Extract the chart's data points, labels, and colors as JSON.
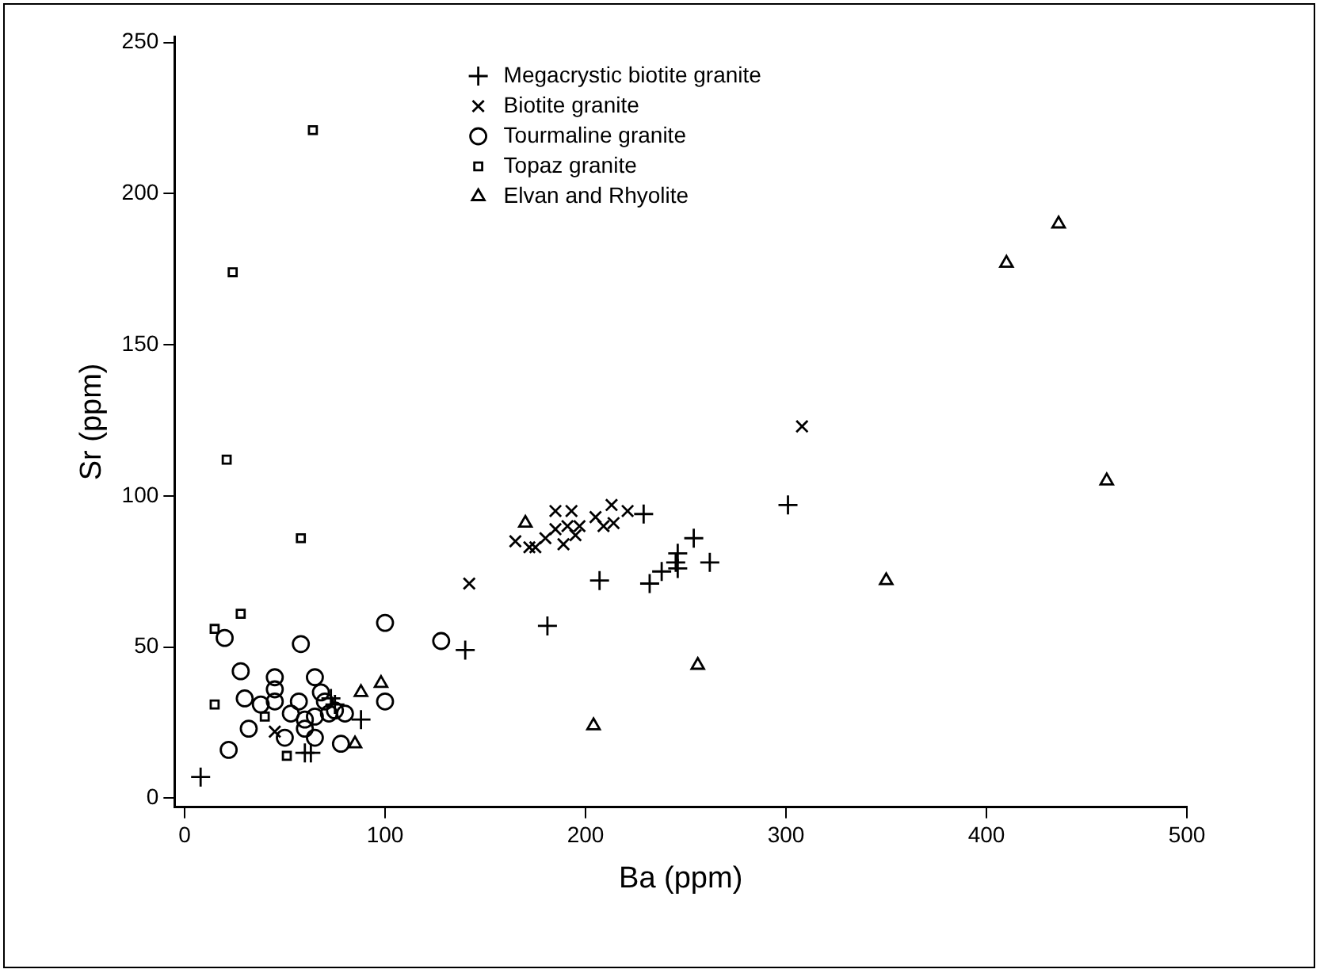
{
  "chart_data": {
    "type": "scatter",
    "xlabel": "Ba (ppm)",
    "ylabel": "Sr (ppm)",
    "xlim": [
      -5,
      500
    ],
    "xticks": [
      0,
      100,
      200,
      300,
      400,
      500
    ],
    "ylim": [
      -3,
      252
    ],
    "yticks": [
      0,
      50,
      100,
      150,
      200,
      250
    ],
    "grid": false,
    "legend": "top",
    "series": [
      {
        "name": "Megacrystic biotite granite",
        "color": "#000000",
        "marker": "cross",
        "x": [
          8,
          60,
          63,
          73,
          75,
          88,
          140,
          181,
          207,
          232,
          238,
          245,
          246,
          246,
          254,
          262,
          229,
          301
        ],
        "values": [
          7,
          15,
          15,
          33,
          31,
          26,
          49,
          57,
          72,
          71,
          75,
          78,
          76,
          81,
          86,
          78,
          94,
          97
        ]
      },
      {
        "name": "Biotite granite",
        "color": "#000000",
        "marker": "x",
        "x": [
          45,
          142,
          165,
          172,
          175,
          180,
          185,
          189,
          185,
          193,
          191,
          197,
          195,
          205,
          213,
          209,
          214,
          221,
          308
        ],
        "values": [
          22,
          71,
          85,
          83,
          83,
          86,
          89,
          84,
          95,
          95,
          90,
          90,
          87,
          93,
          97,
          90,
          91,
          95,
          123
        ]
      },
      {
        "name": "Tourmaline granite",
        "color": "#000000",
        "marker": "circle",
        "x": [
          20,
          22,
          28,
          30,
          32,
          38,
          45,
          45,
          45,
          50,
          53,
          57,
          58,
          60,
          60,
          65,
          65,
          65,
          68,
          70,
          72,
          75,
          78,
          80,
          100,
          100,
          128
        ],
        "values": [
          53,
          16,
          42,
          33,
          23,
          31,
          40,
          36,
          32,
          20,
          28,
          32,
          51,
          26,
          23,
          40,
          27,
          20,
          35,
          32,
          28,
          29,
          18,
          28,
          58,
          32,
          52
        ]
      },
      {
        "name": "Topaz granite",
        "color": "#000000",
        "marker": "square",
        "x": [
          15,
          15,
          21,
          24,
          28,
          40,
          51,
          58,
          64
        ],
        "values": [
          56,
          31,
          112,
          174,
          61,
          27,
          14,
          86,
          221
        ]
      },
      {
        "name": "Elvan and Rhyolite",
        "color": "#000000",
        "marker": "triangle",
        "x": [
          85,
          88,
          98,
          170,
          204,
          256,
          350,
          410,
          436,
          460
        ],
        "values": [
          18,
          35,
          38,
          91,
          24,
          44,
          72,
          177,
          190,
          105
        ]
      }
    ]
  }
}
